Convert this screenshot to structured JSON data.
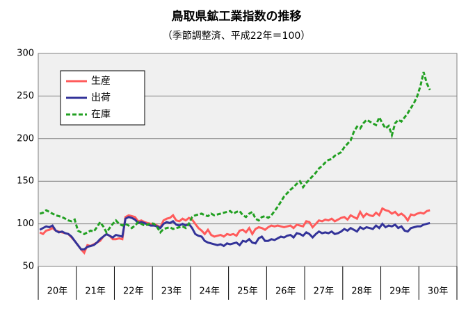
{
  "chart_data": {
    "type": "line",
    "title": "鳥取県鉱工業指数の推移",
    "subtitle": "（季節調整済、平成22年＝100）",
    "categories": [
      "20年",
      null,
      null,
      null,
      null,
      null,
      null,
      null,
      null,
      null,
      null,
      null,
      "21年",
      null,
      null,
      null,
      null,
      null,
      null,
      null,
      null,
      null,
      null,
      null,
      "22年",
      null,
      null,
      null,
      null,
      null,
      null,
      null,
      null,
      null,
      null,
      null,
      "23年",
      null,
      null,
      null,
      null,
      null,
      null,
      null,
      null,
      null,
      null,
      null,
      "24年",
      null,
      null,
      null,
      null,
      null,
      null,
      null,
      null,
      null,
      null,
      null,
      "25年",
      null,
      null,
      null,
      null,
      null,
      null,
      null,
      null,
      null,
      null,
      null,
      "26年",
      null,
      null,
      null,
      null,
      null,
      null,
      null,
      null,
      null,
      null,
      null,
      "27年",
      null,
      null,
      null,
      null,
      null,
      null,
      null,
      null,
      null,
      null,
      null,
      "28年",
      null,
      null,
      null,
      null,
      null,
      null,
      null,
      null,
      null,
      null,
      null,
      "29年",
      null,
      null,
      null,
      null,
      null,
      null,
      null,
      null,
      null,
      null,
      null,
      "30年",
      null,
      null,
      null
    ],
    "series": [
      {
        "name": "生産",
        "color": "#ff5b5b",
        "dash": false,
        "values": [
          90,
          88,
          92,
          93,
          95,
          92,
          91,
          90,
          89,
          88,
          84,
          80,
          75,
          70,
          66,
          75,
          74,
          76,
          78,
          80,
          85,
          88,
          86,
          82,
          82,
          83,
          82,
          108,
          110,
          109,
          108,
          103,
          104,
          102,
          101,
          100,
          100,
          98,
          96,
          104,
          106,
          107,
          110,
          104,
          103,
          106,
          104,
          107,
          105,
          100,
          95,
          92,
          88,
          93,
          87,
          85,
          86,
          87,
          85,
          88,
          87,
          88,
          86,
          92,
          93,
          90,
          95,
          88,
          94,
          96,
          95,
          93,
          96,
          98,
          97,
          98,
          97,
          96,
          97,
          98,
          95,
          99,
          98,
          97,
          103,
          102,
          96,
          100,
          104,
          103,
          105,
          104,
          106,
          103,
          105,
          107,
          108,
          105,
          110,
          108,
          106,
          114,
          108,
          112,
          110,
          109,
          113,
          110,
          118,
          116,
          115,
          112,
          114,
          110,
          112,
          109,
          104,
          111,
          110,
          112,
          113,
          112,
          115,
          116
        ]
      },
      {
        "name": "出荷",
        "color": "#333399",
        "dash": false,
        "values": [
          93,
          95,
          97,
          96,
          98,
          92,
          90,
          91,
          89,
          88,
          85,
          80,
          75,
          70,
          70,
          73,
          74,
          75,
          78,
          82,
          85,
          88,
          86,
          84,
          87,
          86,
          85,
          106,
          108,
          107,
          105,
          101,
          102,
          101,
          99,
          98,
          98,
          97,
          95,
          100,
          102,
          101,
          103,
          99,
          98,
          100,
          98,
          100,
          95,
          88,
          86,
          85,
          80,
          78,
          77,
          76,
          75,
          76,
          74,
          77,
          76,
          77,
          78,
          75,
          80,
          79,
          82,
          78,
          77,
          83,
          85,
          80,
          80,
          82,
          81,
          83,
          85,
          84,
          86,
          87,
          84,
          89,
          88,
          86,
          90,
          88,
          84,
          88,
          91,
          89,
          90,
          89,
          91,
          88,
          89,
          91,
          94,
          92,
          95,
          93,
          91,
          96,
          94,
          96,
          95,
          94,
          98,
          95,
          100,
          96,
          98,
          97,
          99,
          95,
          97,
          92,
          91,
          95,
          96,
          97,
          97,
          99,
          100,
          101
        ]
      },
      {
        "name": "在庫",
        "color": "#22a022",
        "dash": true,
        "values": [
          112,
          113,
          116,
          114,
          112,
          110,
          109,
          108,
          106,
          104,
          103,
          105,
          92,
          90,
          88,
          90,
          92,
          91,
          96,
          102,
          97,
          90,
          95,
          100,
          104,
          100,
          98,
          100,
          98,
          95,
          98,
          102,
          100,
          98,
          99,
          101,
          100,
          96,
          90,
          94,
          95,
          96,
          94,
          95,
          96,
          97,
          95,
          100,
          108,
          110,
          111,
          112,
          110,
          109,
          112,
          110,
          111,
          112,
          113,
          114,
          115,
          112,
          114,
          115,
          110,
          108,
          112,
          114,
          106,
          104,
          108,
          109,
          107,
          110,
          115,
          120,
          126,
          132,
          136,
          140,
          143,
          147,
          150,
          143,
          148,
          152,
          156,
          160,
          165,
          168,
          172,
          175,
          176,
          180,
          182,
          184,
          190,
          194,
          198,
          208,
          214,
          212,
          218,
          222,
          220,
          218,
          216,
          225,
          218,
          212,
          215,
          204,
          218,
          222,
          220,
          225,
          230,
          236,
          242,
          250,
          262,
          278,
          265,
          257
        ]
      }
    ],
    "ylim": [
      50,
      300
    ],
    "yticks": [
      50,
      100,
      150,
      200,
      250,
      300
    ],
    "grid": true,
    "legend": "upper left"
  }
}
